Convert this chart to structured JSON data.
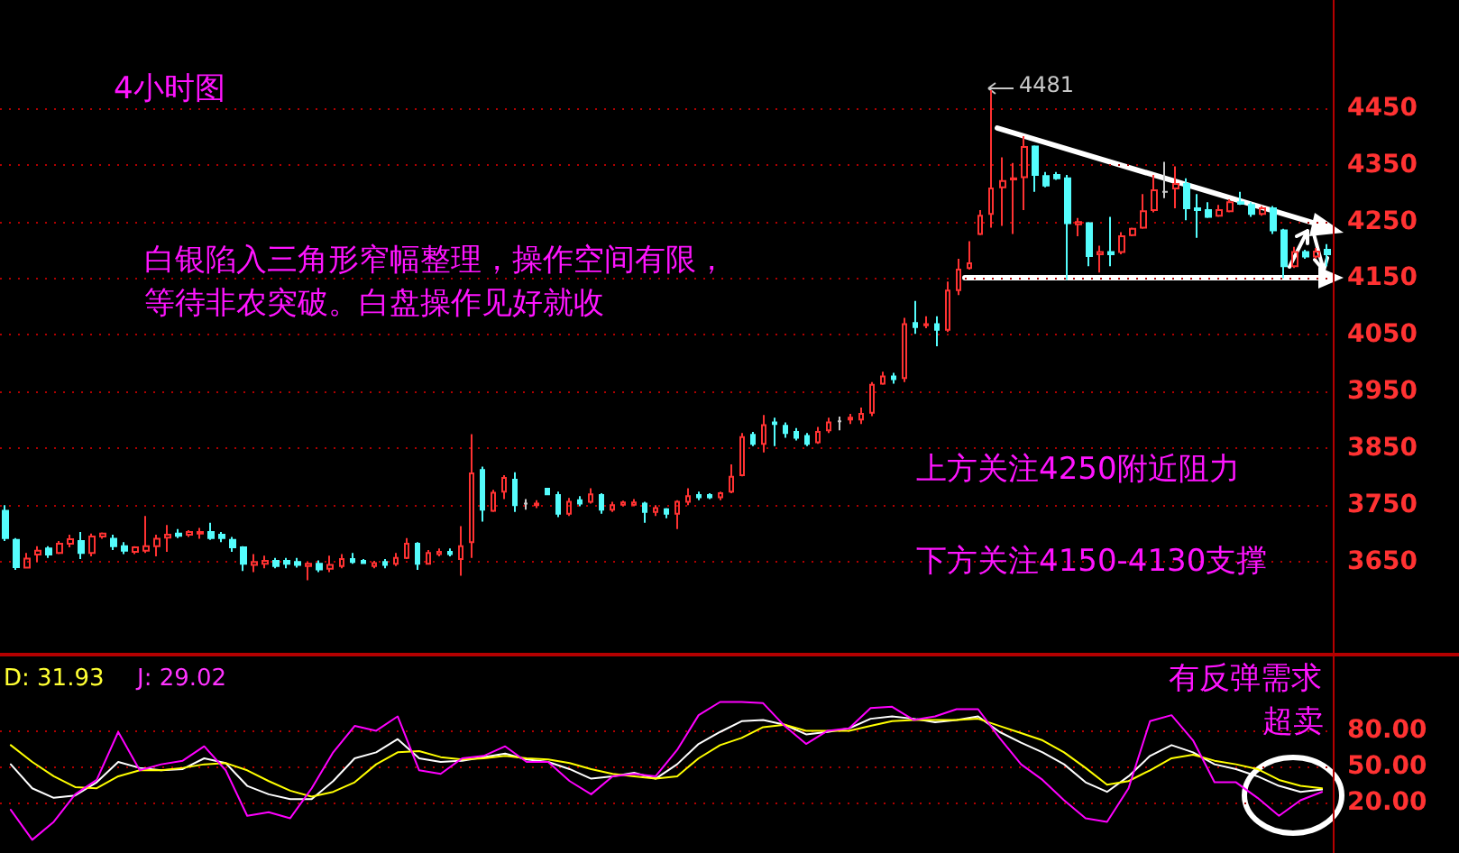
{
  "chart_data": [
    {
      "type": "candlestick",
      "title": "4小时图",
      "categories": [
        null,
        null,
        null,
        null,
        null,
        null,
        null,
        null,
        null,
        null,
        null,
        null,
        null,
        null,
        null,
        null,
        null,
        null,
        null,
        null,
        null,
        null,
        null,
        null,
        null,
        null,
        null,
        null,
        null,
        null,
        null,
        null,
        null,
        null,
        null,
        null,
        null,
        null,
        null,
        null,
        null,
        null,
        null,
        null,
        null,
        null,
        null,
        null,
        null,
        null,
        null,
        null,
        null,
        null,
        null,
        null,
        null,
        null,
        null,
        null,
        null,
        null,
        null,
        null,
        null,
        null,
        null,
        null,
        null,
        null,
        null,
        null,
        null,
        null,
        null,
        null,
        null,
        null,
        null,
        null,
        null,
        null,
        null,
        null,
        null,
        null,
        null,
        null,
        null,
        null,
        null,
        null,
        null,
        null,
        null,
        null,
        null,
        null,
        null,
        null,
        null,
        null,
        null,
        null,
        null,
        null,
        null,
        null,
        null,
        null,
        null,
        null,
        null,
        null,
        null,
        null,
        null,
        null,
        null,
        null,
        null,
        null,
        null
      ],
      "ohlc": [
        [
          3740,
          3750,
          3687,
          3692
        ],
        [
          3689,
          3692,
          3636,
          3641
        ],
        [
          3640,
          3666,
          3639,
          3656
        ],
        [
          3663,
          3678,
          3650,
          3670
        ],
        [
          3674,
          3678,
          3657,
          3663
        ],
        [
          3666,
          3687,
          3664,
          3682
        ],
        [
          3682,
          3698,
          3676,
          3690
        ],
        [
          3687,
          3703,
          3655,
          3666
        ],
        [
          3666,
          3700,
          3660,
          3695
        ],
        [
          3695,
          3702,
          3691,
          3700
        ],
        [
          3691,
          3698,
          3671,
          3678
        ],
        [
          3678,
          3685,
          3664,
          3670
        ],
        [
          3668,
          3678,
          3664,
          3676
        ],
        [
          3670,
          3731,
          3666,
          3678
        ],
        [
          3678,
          3698,
          3660,
          3691
        ],
        [
          3693,
          3715,
          3668,
          3698
        ],
        [
          3700,
          3708,
          3692,
          3696
        ],
        [
          3698,
          3706,
          3694,
          3703
        ],
        [
          3700,
          3710,
          3691,
          3703
        ],
        [
          3703,
          3719,
          3689,
          3692
        ],
        [
          3698,
          3703,
          3685,
          3692
        ],
        [
          3689,
          3694,
          3668,
          3676
        ],
        [
          3676,
          3678,
          3634,
          3647
        ],
        [
          3645,
          3664,
          3632,
          3650
        ],
        [
          3647,
          3661,
          3639,
          3652
        ],
        [
          3652,
          3657,
          3639,
          3643
        ],
        [
          3652,
          3657,
          3639,
          3647
        ],
        [
          3650,
          3657,
          3640,
          3645
        ],
        [
          3643,
          3650,
          3618,
          3647
        ],
        [
          3647,
          3653,
          3632,
          3637
        ],
        [
          3638,
          3661,
          3632,
          3645
        ],
        [
          3643,
          3664,
          3639,
          3655
        ],
        [
          3655,
          3666,
          3647,
          3650
        ],
        [
          3652,
          3655,
          3647,
          3648
        ],
        [
          3643,
          3652,
          3639,
          3648
        ],
        [
          3650,
          3655,
          3639,
          3645
        ],
        [
          3647,
          3666,
          3643,
          3657
        ],
        [
          3657,
          3692,
          3655,
          3682
        ],
        [
          3682,
          3685,
          3636,
          3647
        ],
        [
          3647,
          3671,
          3647,
          3666
        ],
        [
          3664,
          3674,
          3660,
          3668
        ],
        [
          3668,
          3674,
          3660,
          3664
        ],
        [
          3655,
          3713,
          3626,
          3678
        ],
        [
          3685,
          3875,
          3657,
          3806
        ],
        [
          3812,
          3818,
          3721,
          3742
        ],
        [
          3740,
          3777,
          3738,
          3772
        ],
        [
          3774,
          3803,
          3761,
          3798
        ],
        [
          3795,
          3808,
          3738,
          3750
        ],
        [
          3753,
          3761,
          3742,
          3753
        ],
        [
          3750,
          3759,
          3745,
          3753
        ],
        [
          3779,
          3779,
          3769,
          3769
        ],
        [
          3768,
          3774,
          3729,
          3735
        ],
        [
          3735,
          3763,
          3731,
          3756
        ],
        [
          3759,
          3766,
          3748,
          3753
        ],
        [
          3756,
          3780,
          3753,
          3769
        ],
        [
          3768,
          3771,
          3735,
          3742
        ],
        [
          3742,
          3756,
          3738,
          3750
        ],
        [
          3751,
          3758,
          3748,
          3755
        ],
        [
          3751,
          3761,
          3748,
          3755
        ],
        [
          3753,
          3756,
          3719,
          3738
        ],
        [
          3738,
          3750,
          3731,
          3745
        ],
        [
          3743,
          3745,
          3727,
          3735
        ],
        [
          3735,
          3759,
          3708,
          3756
        ],
        [
          3756,
          3780,
          3750,
          3766
        ],
        [
          3768,
          3774,
          3759,
          3764
        ],
        [
          3768,
          3771,
          3761,
          3764
        ],
        [
          3764,
          3774,
          3759,
          3771
        ],
        [
          3774,
          3822,
          3771,
          3800
        ],
        [
          3803,
          3877,
          3801,
          3870
        ],
        [
          3874,
          3879,
          3854,
          3858
        ],
        [
          3858,
          3909,
          3843,
          3891
        ],
        [
          3896,
          3904,
          3854,
          3893
        ],
        [
          3890,
          3896,
          3869,
          3877
        ],
        [
          3879,
          3886,
          3864,
          3869
        ],
        [
          3872,
          3877,
          3854,
          3858
        ],
        [
          3861,
          3888,
          3858,
          3879
        ],
        [
          3882,
          3904,
          3877,
          3896
        ],
        [
          3898,
          3906,
          3882,
          3898
        ],
        [
          3901,
          3911,
          3893,
          3904
        ],
        [
          3901,
          3922,
          3893,
          3911
        ],
        [
          3913,
          3967,
          3907,
          3962
        ],
        [
          3964,
          3985,
          3962,
          3977
        ],
        [
          3977,
          3983,
          3964,
          3972
        ],
        [
          3974,
          4080,
          3967,
          4069
        ],
        [
          4071,
          4110,
          4052,
          4064
        ],
        [
          4067,
          4083,
          4062,
          4069
        ],
        [
          4069,
          4083,
          4030,
          4059
        ],
        [
          4059,
          4144,
          4055,
          4128
        ],
        [
          4129,
          4184,
          4120,
          4165
        ],
        [
          4168,
          4215,
          4165,
          4176
        ],
        [
          4228,
          4270,
          4226,
          4260
        ],
        [
          4263,
          4481,
          4239,
          4308
        ],
        [
          4310,
          4363,
          4242,
          4321
        ],
        [
          4324,
          4353,
          4228,
          4326
        ],
        [
          4328,
          4400,
          4270,
          4381
        ],
        [
          4382,
          4384,
          4302,
          4332
        ],
        [
          4330,
          4337,
          4310,
          4313
        ],
        [
          4332,
          4337,
          4323,
          4326
        ],
        [
          4326,
          4332,
          4147,
          4247
        ],
        [
          4245,
          4256,
          4224,
          4249
        ],
        [
          4247,
          4249,
          4171,
          4189
        ],
        [
          4192,
          4207,
          4160,
          4196
        ],
        [
          4196,
          4258,
          4171,
          4192
        ],
        [
          4196,
          4231,
          4192,
          4224
        ],
        [
          4226,
          4239,
          4224,
          4237
        ],
        [
          4239,
          4298,
          4237,
          4268
        ],
        [
          4270,
          4332,
          4266,
          4305
        ],
        [
          4302,
          4355,
          4291,
          4302
        ],
        [
          4308,
          4347,
          4273,
          4316
        ],
        [
          4316,
          4326,
          4252,
          4273
        ],
        [
          4273,
          4298,
          4221,
          4270
        ],
        [
          4270,
          4284,
          4256,
          4258
        ],
        [
          4260,
          4279,
          4258,
          4270
        ],
        [
          4268,
          4289,
          4266,
          4284
        ],
        [
          4284,
          4302,
          4279,
          4281
        ],
        [
          4279,
          4284,
          4258,
          4263
        ],
        [
          4263,
          4277,
          4260,
          4273
        ],
        [
          4273,
          4277,
          4228,
          4234
        ],
        [
          4234,
          4237,
          4150,
          4171
        ],
        [
          4171,
          4205,
          4168,
          4196
        ],
        [
          4196,
          4200,
          4184,
          4188
        ],
        [
          4188,
          4203,
          4184,
          4197
        ],
        [
          4200,
          4210,
          4171,
          4192
        ]
      ],
      "colors": [
        "#54fcfc",
        "#54fcfc",
        "#ff3232",
        "#ff3232",
        "#54fcfc",
        "#ff3232",
        "#ff3232",
        "#54fcfc",
        "#ff3232",
        "#ff3232",
        "#54fcfc",
        "#54fcfc",
        "#ff3232",
        "#ff3232",
        "#ff3232",
        "#ff3232",
        "#54fcfc",
        "#ff3232",
        "#ff3232",
        "#54fcfc",
        "#54fcfc",
        "#54fcfc",
        "#54fcfc",
        "#ff3232",
        "#ff3232",
        "#54fcfc",
        "#54fcfc",
        "#54fcfc",
        "#ff3232",
        "#54fcfc",
        "#ff3232",
        "#ff3232",
        "#54fcfc",
        "#54fcfc",
        "#ff3232",
        "#54fcfc",
        "#ff3232",
        "#ff3232",
        "#54fcfc",
        "#ff3232",
        "#ff3232",
        "#54fcfc",
        "#ff3232",
        "#ff3232",
        "#54fcfc",
        "#ff3232",
        "#ff3232",
        "#54fcfc",
        "#c8c8c8",
        "#ff3232",
        "#54fcfc",
        "#54fcfc",
        "#ff3232",
        "#54fcfc",
        "#ff3232",
        "#54fcfc",
        "#ff3232",
        "#ff3232",
        "#ff3232",
        "#54fcfc",
        "#ff3232",
        "#54fcfc",
        "#ff3232",
        "#ff3232",
        "#54fcfc",
        "#54fcfc",
        "#ff3232",
        "#ff3232",
        "#ff3232",
        "#54fcfc",
        "#ff3232",
        "#54fcfc",
        "#54fcfc",
        "#54fcfc",
        "#54fcfc",
        "#ff3232",
        "#ff3232",
        "#c8c8c8",
        "#ff3232",
        "#ff3232",
        "#ff3232",
        "#ff3232",
        "#54fcfc",
        "#ff3232",
        "#54fcfc",
        "#ff3232",
        "#54fcfc",
        "#ff3232",
        "#ff3232",
        "#ff3232",
        "#ff3232",
        "#ff3232",
        "#ff3232",
        "#ff3232",
        "#ff3232",
        "#54fcfc",
        "#54fcfc",
        "#54fcfc",
        "#54fcfc",
        "#ff3232",
        "#54fcfc",
        "#ff3232",
        "#54fcfc",
        "#ff3232",
        "#ff3232",
        "#ff3232",
        "#ff3232",
        "#c8c8c8",
        "#ff3232",
        "#54fcfc",
        "#54fcfc",
        "#54fcfc",
        "#ff3232",
        "#ff3232",
        "#54fcfc",
        "#54fcfc",
        "#ff3232",
        "#54fcfc",
        "#54fcfc",
        "#ff3232",
        "#54fcfc",
        "#ff3232",
        "#54fcfc"
      ],
      "ylim": [
        3490,
        4640
      ],
      "yticks": [
        3650,
        3750,
        3850,
        3950,
        4050,
        4150,
        4250,
        4350,
        4450
      ],
      "grid": "y",
      "tick_labels": "y",
      "annotations": [
        "白银陷入三角形窄幅整理，操作空间有限，",
        "等待非农突破。白盘操作见好就收",
        "上方关注4250附近阻力",
        "下方关注4150-4130支撑",
        "4481"
      ]
    },
    {
      "type": "line",
      "categories": [
        null,
        null,
        null,
        null,
        null,
        null,
        null,
        null,
        null,
        null,
        null,
        null,
        null,
        null,
        null,
        null,
        null,
        null,
        null,
        null,
        null,
        null,
        null,
        null,
        null,
        null,
        null,
        null,
        null,
        null,
        null,
        null,
        null,
        null,
        null,
        null,
        null,
        null,
        null,
        null,
        null,
        null,
        null,
        null,
        null,
        null,
        null,
        null,
        null,
        null,
        null,
        null,
        null,
        null,
        null,
        null,
        null,
        null,
        null,
        null,
        null,
        null
      ],
      "series": [
        {
          "color": "#ffffff",
          "values": [
            52,
            32,
            24,
            26,
            37,
            54,
            49,
            47,
            48,
            57,
            53,
            34,
            27,
            23,
            23,
            38,
            57,
            62,
            73,
            57,
            54,
            55,
            58,
            61,
            56,
            54,
            48,
            40,
            42,
            45,
            40,
            52,
            69,
            79,
            88,
            89,
            85,
            77,
            79,
            82,
            90,
            92,
            90,
            87,
            89,
            92,
            79,
            70,
            62,
            52,
            37,
            29,
            42,
            59,
            68,
            62,
            52,
            48,
            42,
            34,
            29,
            31
          ]
        },
        {
          "color": "#ffff00",
          "values": [
            68,
            54,
            42,
            33,
            32,
            42,
            47,
            47,
            49,
            52,
            53,
            47,
            38,
            30,
            25,
            29,
            37,
            52,
            62,
            63,
            58,
            56,
            57,
            59,
            57,
            56,
            53,
            48,
            44,
            42,
            40,
            42,
            57,
            68,
            74,
            83,
            85,
            80,
            80,
            80,
            84,
            88,
            89,
            89,
            89,
            90,
            84,
            78,
            72,
            62,
            49,
            35,
            38,
            47,
            57,
            60,
            55,
            52,
            48,
            39,
            34,
            32
          ]
        },
        {
          "color": "#ff00ff",
          "values": [
            14,
            -11,
            4,
            27,
            39,
            79,
            47,
            52,
            55,
            67,
            47,
            9,
            12,
            7,
            32,
            62,
            84,
            80,
            92,
            47,
            44,
            57,
            59,
            67,
            54,
            54,
            38,
            27,
            42,
            44,
            42,
            64,
            93,
            104,
            104,
            103,
            84,
            69,
            80,
            82,
            99,
            100,
            89,
            92,
            98,
            98,
            74,
            52,
            39,
            22,
            7,
            4,
            32,
            88,
            93,
            72,
            37,
            37,
            24,
            9,
            22,
            29
          ]
        }
      ],
      "ylim": [
        -22,
        142
      ],
      "yticks": [
        {
          "value": 20,
          "label": "20.00"
        },
        {
          "value": 50,
          "label": "50.00"
        },
        {
          "value": 80,
          "label": "80.00"
        }
      ],
      "grid": "y",
      "tick_labels": "y",
      "annotations": [
        "D: 31.93",
        "J: 29.02",
        "有反弹需求",
        "超卖"
      ]
    }
  ]
}
